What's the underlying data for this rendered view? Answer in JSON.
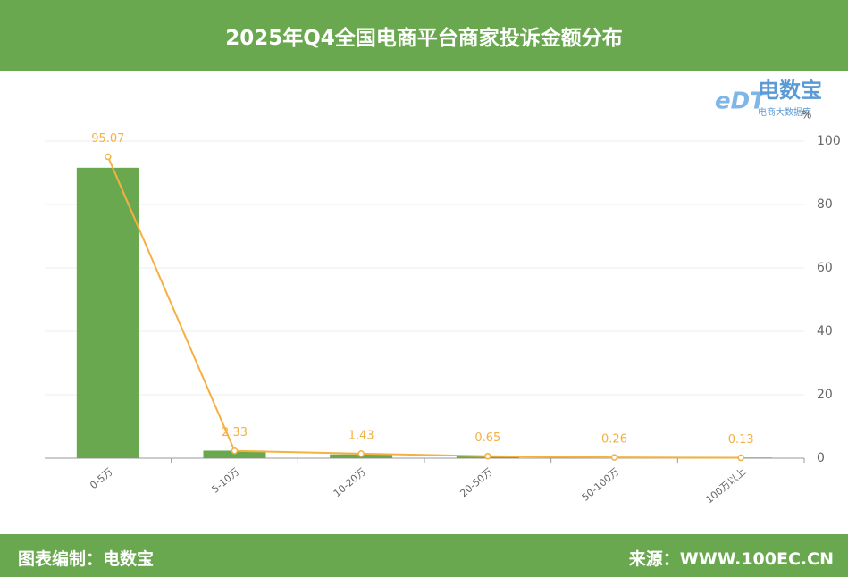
{
  "header": {
    "title": "2025年Q4全国电商平台商家投诉金额分布"
  },
  "logo": {
    "mark": "eDT",
    "name": "电数宝",
    "subtitle": "电商大数据库"
  },
  "footer": {
    "left": "图表编制：电数宝",
    "right": "来源：WWW.100EC.CN"
  },
  "chart_data": {
    "type": "bar",
    "categories": [
      "0-5万",
      "5-10万",
      "10-20万",
      "20-50万",
      "50-100万",
      "100万以上"
    ],
    "series": [
      {
        "type": "bar",
        "color": "#6aa84f",
        "values": [
          91.6,
          2.4,
          1.2,
          0.6,
          0.3,
          0.2
        ]
      },
      {
        "type": "line",
        "color": "#f5b041",
        "values": [
          95.07,
          2.33,
          1.43,
          0.65,
          0.26,
          0.13
        ]
      }
    ],
    "y_unit": "%",
    "ylim": [
      0,
      100
    ],
    "yticks": [
      0,
      20,
      40,
      60,
      80,
      100
    ],
    "y_axis_side": "right",
    "grid": true
  }
}
